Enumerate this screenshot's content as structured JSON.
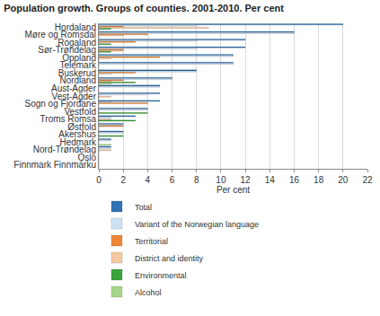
{
  "chart_data": {
    "type": "bar",
    "orientation": "horizontal",
    "title": "Population growth. Groups of counties. 2001-2010. Per cent",
    "x_label": "Per cent",
    "categories": [
      "Hordaland",
      "Møre og Romsdal",
      "Rogaland",
      "Sør-Trøndelag",
      "Oppland",
      "Telemark",
      "Buskerud",
      "Nordland",
      "Aust-Agder",
      "Vest-Agder",
      "Sogn og Fjordane",
      "Vestfold",
      "Troms Romsa",
      "Østfold",
      "Akershus",
      "Hedmark",
      "Nord-Trøndelag",
      "Oslo",
      "Finnmark Finnmárku"
    ],
    "series": [
      {
        "name": "Total",
        "color": "#2f74b5",
        "values": [
          20,
          16,
          12,
          12,
          11,
          11,
          8,
          6,
          5,
          5,
          5,
          4,
          3,
          2,
          2,
          1,
          1,
          0,
          0
        ]
      },
      {
        "name": "Variant of the Norwegian language",
        "color": "#cfe2f3",
        "values": [
          8,
          16,
          8,
          8,
          11,
          11,
          8,
          6,
          5,
          4,
          1,
          4,
          1,
          2,
          2,
          1,
          1,
          0,
          0
        ]
      },
      {
        "name": "Territorial",
        "color": "#ee8636",
        "values": [
          2,
          4,
          3,
          2,
          5,
          0,
          3,
          2,
          0,
          0,
          4,
          0,
          0,
          2,
          0,
          0,
          0,
          0,
          0
        ]
      },
      {
        "name": "District and identity",
        "color": "#f6c9a0",
        "values": [
          9,
          2,
          0,
          2,
          1,
          0,
          1,
          1,
          0,
          1,
          0,
          0,
          1,
          0,
          0,
          0,
          1,
          0,
          0
        ]
      },
      {
        "name": "Environmental",
        "color": "#3aa33a",
        "values": [
          1,
          0,
          1,
          1,
          0,
          0,
          0,
          3,
          0,
          0,
          0,
          4,
          3,
          0,
          2,
          0,
          0,
          0,
          0
        ]
      },
      {
        "name": "Alcohol",
        "color": "#a6d68a",
        "values": [
          0,
          0,
          0,
          0,
          0,
          0,
          0,
          1,
          0,
          0,
          0,
          0,
          0,
          0,
          0,
          1,
          0,
          0,
          0
        ]
      }
    ],
    "xlim": [
      0,
      22
    ],
    "xticks": [
      0,
      2,
      4,
      6,
      8,
      10,
      12,
      14,
      16,
      18,
      20,
      22
    ],
    "grid": true,
    "legend": "bottom"
  }
}
